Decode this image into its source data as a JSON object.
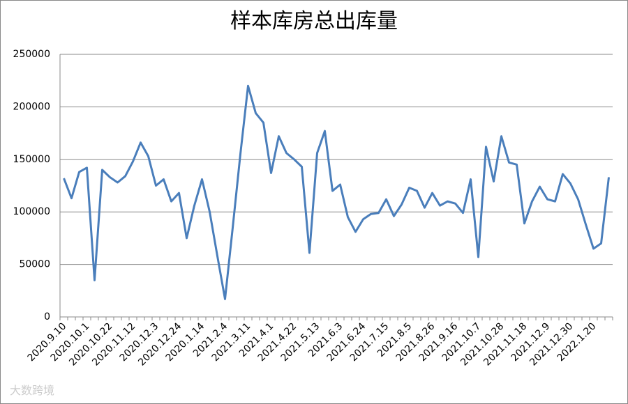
{
  "chart_data": {
    "type": "line",
    "title": "样本库房总出库量",
    "categories": [
      "2020.9.10",
      null,
      null,
      "2020.10.1",
      null,
      null,
      "2020.10.22",
      null,
      null,
      "2020.11.12",
      null,
      null,
      "2020.12.3",
      null,
      null,
      "2020.12.24",
      null,
      null,
      "2020.1.14",
      null,
      null,
      "2021.2.4",
      null,
      null,
      "2021.3.11",
      null,
      null,
      "2021.4.1",
      null,
      null,
      "2021.4.22",
      null,
      null,
      "2021.5.13",
      null,
      null,
      "2021.6.3",
      null,
      null,
      "2021.6.24",
      null,
      null,
      "2021.7.15",
      null,
      null,
      "2021.8.5",
      null,
      null,
      "2021.8.26",
      null,
      null,
      "2021.9.16",
      null,
      null,
      "2021.10.7",
      null,
      null,
      "2021.10.28",
      null,
      null,
      "2021.11.18",
      null,
      null,
      "2021.12.9",
      null,
      null,
      "2021.12.30",
      null,
      null,
      "2022.1.20",
      null,
      null
    ],
    "series": [
      {
        "color": "#4a7ebb",
        "values": [
          132000,
          113000,
          138000,
          142000,
          35000,
          140000,
          133000,
          128000,
          134000,
          148000,
          166000,
          153000,
          125000,
          131000,
          110000,
          118000,
          75000,
          106000,
          131000,
          100000,
          58000,
          17000,
          85000,
          155000,
          220000,
          194000,
          185000,
          137000,
          172000,
          156000,
          150000,
          143000,
          61000,
          156000,
          177000,
          120000,
          126000,
          95000,
          81000,
          93000,
          98000,
          99000,
          112000,
          96000,
          107000,
          123000,
          120000,
          104000,
          118000,
          106000,
          110000,
          108000,
          99000,
          131000,
          57000,
          162000,
          129000,
          172000,
          147000,
          145000,
          89000,
          110000,
          124000,
          112000,
          110000,
          136000,
          127000,
          112000,
          88000,
          65000,
          70000,
          133000
        ]
      }
    ],
    "ylim": [
      0,
      250000
    ],
    "yticks": [
      0,
      50000,
      100000,
      150000,
      200000,
      250000
    ],
    "grid": true
  },
  "watermark": "大数跨境"
}
